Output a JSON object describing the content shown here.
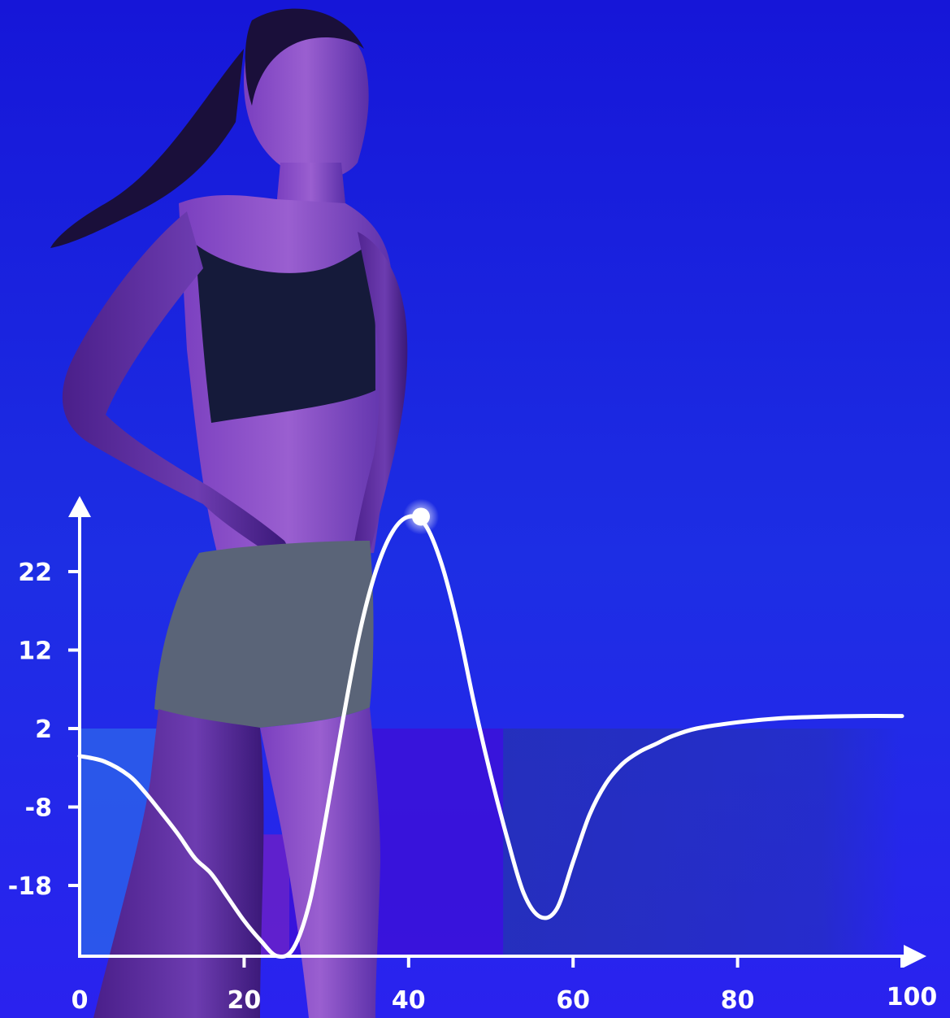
{
  "colors": {
    "background_top": "#1a20e0",
    "background_bottom": "#2a23ef",
    "line": "#ffffff",
    "axis": "#ffffff",
    "band_blue": "#2b5fea",
    "band_purple": "#6a20c8",
    "band_violet": "#3c10d8",
    "band_dark": "#2530b8"
  },
  "photo": {
    "subject": "athlete-woman-photo"
  },
  "chart_data": {
    "type": "line",
    "title": "",
    "xlabel": "",
    "ylabel": "",
    "x_ticks": [
      0,
      20,
      40,
      60,
      80,
      100
    ],
    "y_ticks": [
      22,
      12,
      2,
      -8,
      -18
    ],
    "x_tick_labels": [
      "0",
      "20",
      "40",
      "60",
      "80",
      "100"
    ],
    "y_tick_labels": [
      "22",
      "12",
      "2",
      "-8",
      "-18"
    ],
    "xlim": [
      0,
      100
    ],
    "ylim": [
      -27,
      29
    ],
    "grid": false,
    "series": [
      {
        "x": [
          0,
          3,
          6,
          8,
          10,
          12,
          14,
          16,
          18,
          20,
          22,
          24,
          26,
          28,
          30,
          32,
          34,
          36,
          38,
          40,
          42,
          44,
          46,
          48,
          50,
          52,
          54,
          56,
          58,
          60,
          62,
          64,
          66,
          68,
          70,
          72,
          75,
          80,
          85,
          90,
          95,
          100
        ],
        "y": [
          -1.5,
          -2.2,
          -4.0,
          -6.2,
          -8.8,
          -11.5,
          -14.5,
          -16.5,
          -19.5,
          -22.5,
          -25,
          -27,
          -26,
          -20,
          -9,
          3,
          14,
          22,
          27,
          29,
          28,
          23,
          15,
          5,
          -4,
          -12,
          -19,
          -22,
          -21,
          -15,
          -9,
          -5,
          -2.5,
          -1,
          0,
          1,
          2,
          2.8,
          3.3,
          3.5,
          3.6,
          3.6
        ]
      }
    ],
    "highlight_point": {
      "x": 41.5,
      "y": 29
    },
    "bands": [
      {
        "x_start": 0,
        "x_end": 18.5,
        "color": "#2b5fea"
      },
      {
        "x_start": 18.5,
        "x_end": 25.5,
        "color": "#6a20c8"
      },
      {
        "x_start": 25.5,
        "x_end": 51.5,
        "color": "#3c10d8"
      },
      {
        "x_start": 51.5,
        "x_end": 100,
        "color": "#2530b8"
      }
    ]
  }
}
